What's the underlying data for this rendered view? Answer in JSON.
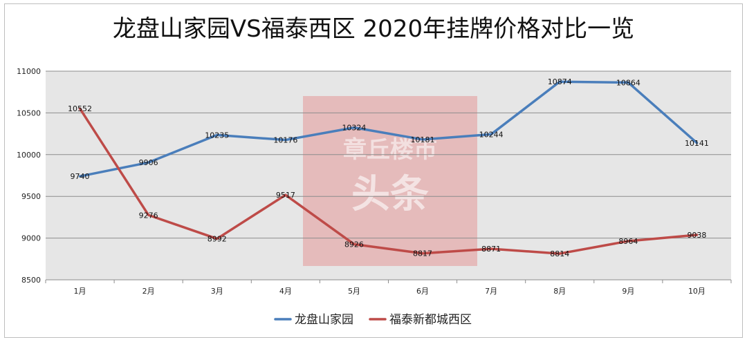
{
  "chart_data": {
    "type": "line",
    "title": "龙盘山家园VS福泰西区  2020年挂牌价格对比一览",
    "categories": [
      "1月",
      "2月",
      "3月",
      "4月",
      "5月",
      "6月",
      "7月",
      "8月",
      "9月",
      "10月"
    ],
    "ylim": [
      8500,
      11000
    ],
    "yticks": [
      8500,
      9000,
      9500,
      10000,
      10500,
      11000
    ],
    "grid": true,
    "legend_position": "bottom",
    "series": [
      {
        "name": "龙盘山家园",
        "color": "#4a7ebb",
        "values": [
          9740,
          9906,
          10235,
          10176,
          10324,
          10181,
          10244,
          10874,
          10864,
          10141
        ]
      },
      {
        "name": "福泰新都城西区",
        "color": "#be4b48",
        "values": [
          10552,
          9276,
          8992,
          9517,
          8926,
          8817,
          8871,
          8814,
          8964,
          9038
        ]
      }
    ]
  },
  "watermark": {
    "line1": "章丘楼市",
    "line2": "头条",
    "color": "#e36a6a"
  }
}
